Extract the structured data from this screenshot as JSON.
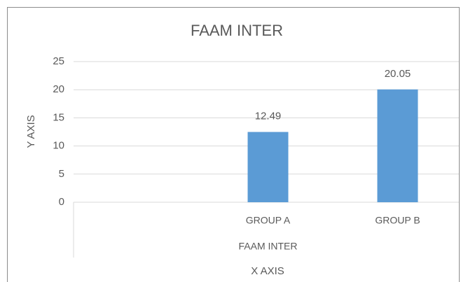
{
  "chart_data": {
    "type": "bar",
    "title": "FAAM INTER",
    "x_label": "X AXIS",
    "y_label": "Y AXIS",
    "group_label": "FAAM INTER",
    "categories": [
      null,
      "GROUP A",
      "GROUP B"
    ],
    "values": [
      null,
      12.49,
      20.05
    ],
    "color": "#5b9bd5",
    "ylim": [
      0,
      25
    ],
    "yticks": [
      0,
      5,
      10,
      15,
      20,
      25
    ],
    "grid": true
  }
}
